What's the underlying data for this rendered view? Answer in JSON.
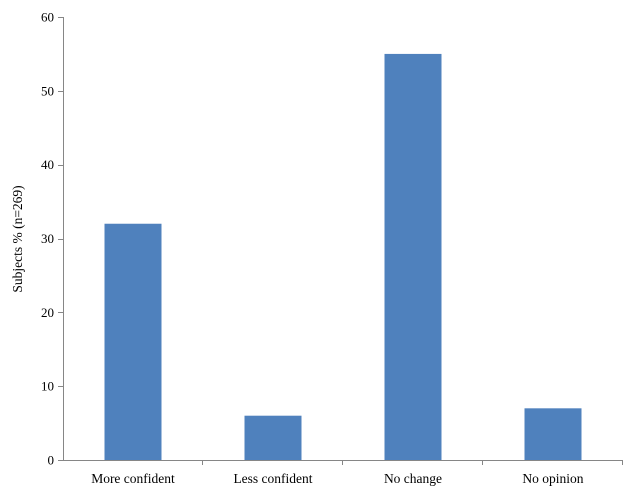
{
  "chart_data": {
    "type": "bar",
    "title": "",
    "xlabel": "",
    "ylabel": "Subjects % (n=269)",
    "categories": [
      "More confident",
      "Less confident",
      "No change",
      "No opinion"
    ],
    "values": [
      32,
      6,
      55,
      7
    ],
    "ylim": [
      0,
      60
    ],
    "yticks": [
      0,
      10,
      20,
      30,
      40,
      50,
      60
    ],
    "ytick_labels": [
      "0",
      "10",
      "20",
      "30",
      "40",
      "50",
      "60"
    ],
    "grid": false,
    "legend": "none",
    "bar_color": "#4f81bd",
    "axis_color": "#868686"
  }
}
